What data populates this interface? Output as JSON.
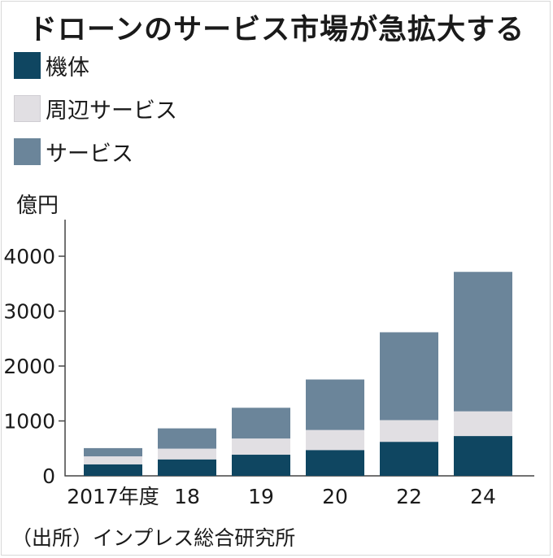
{
  "chart_data": {
    "type": "bar",
    "stacked": true,
    "title": "ドローンのサービス市場が急拡大する",
    "unit_label": "億円",
    "categories": [
      "2017年度",
      "18",
      "19",
      "20",
      "22",
      "24"
    ],
    "series": [
      {
        "name": "機体",
        "color": "#0f4661",
        "values": [
          210,
          300,
          385,
          470,
          620,
          725
        ]
      },
      {
        "name": "周辺サービス",
        "color": "#e1dfe3",
        "values": [
          145,
          195,
          295,
          365,
          395,
          450
        ]
      },
      {
        "name": "サービス",
        "color": "#6b859a",
        "values": [
          150,
          370,
          560,
          920,
          1600,
          2540
        ]
      }
    ],
    "y_ticks": [
      "1000",
      "2000",
      "3000",
      "4000"
    ],
    "y_tick_values": [
      1000,
      2000,
      3000,
      4000
    ],
    "zero_label": "0",
    "ylim": [
      0,
      4700
    ],
    "grid": false,
    "legend_position": "top-left",
    "source": "（出所）インプレス総合研究所"
  }
}
